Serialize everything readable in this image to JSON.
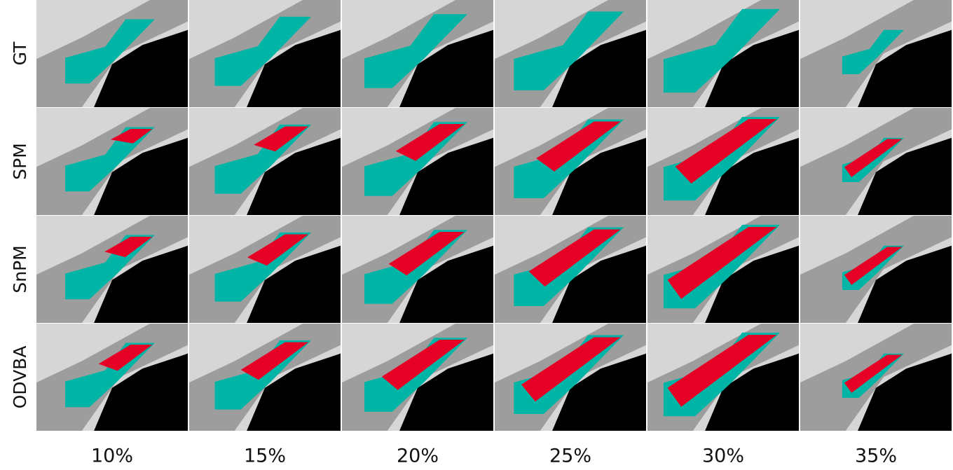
{
  "rows": [
    "GT",
    "SPM",
    "SnPM",
    "ODVBA"
  ],
  "columns": [
    "10%",
    "15%",
    "20%",
    "25%",
    "30%",
    "35%"
  ]
}
